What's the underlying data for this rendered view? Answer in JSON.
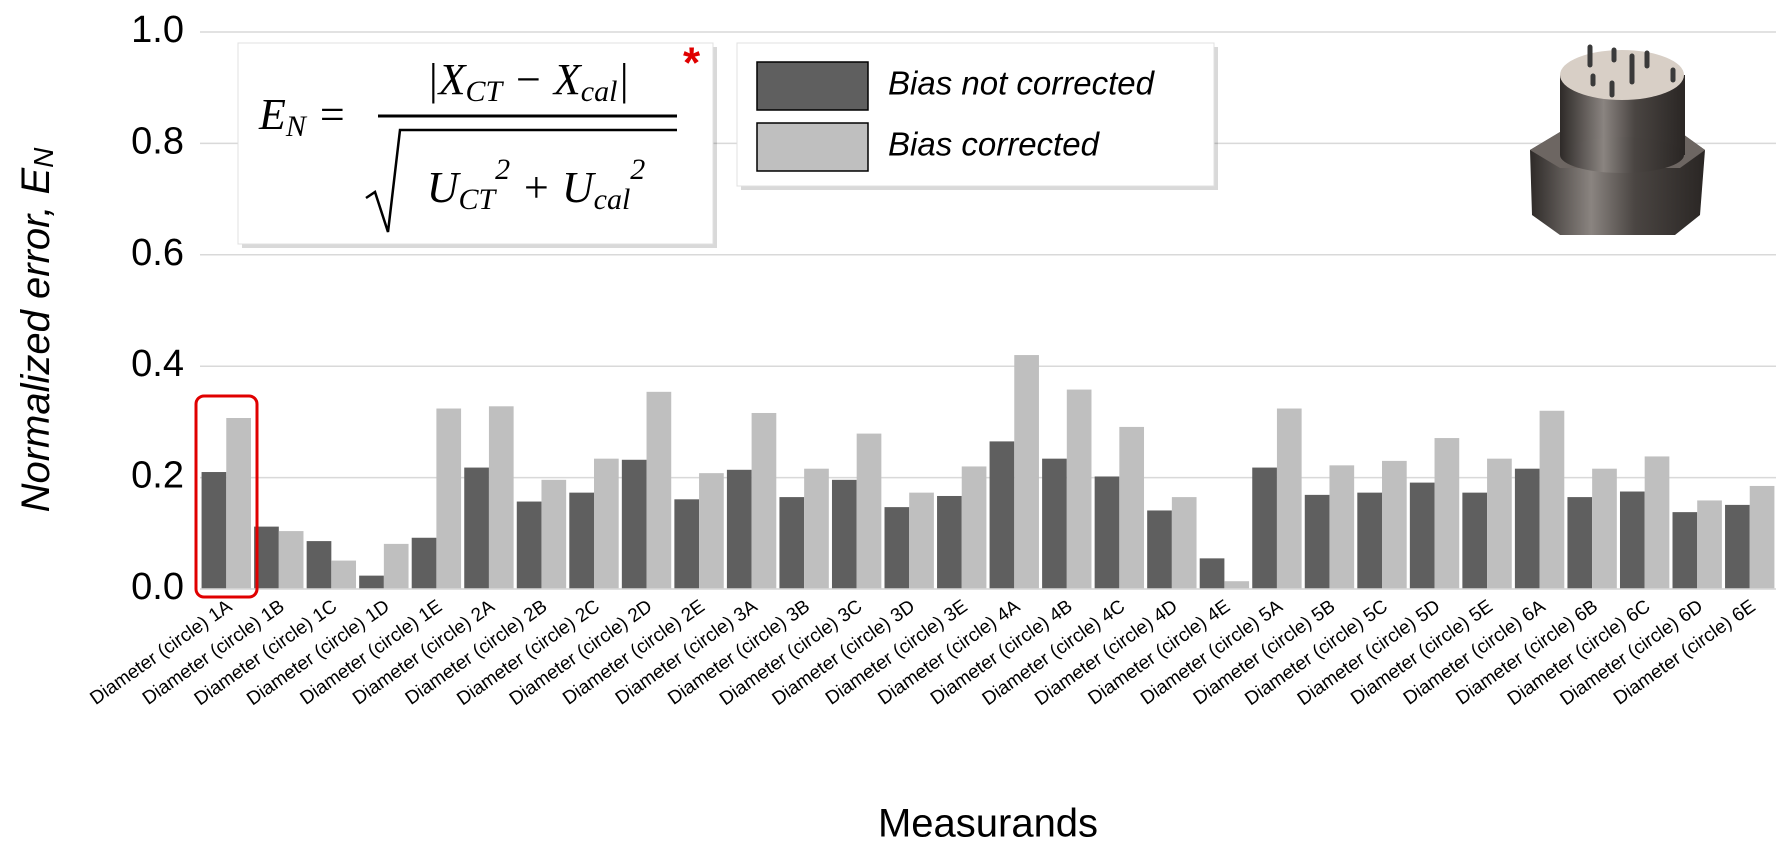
{
  "chart_data": {
    "type": "bar",
    "y_label": "Normalized error, E",
    "y_label_sub": "N",
    "x_label": "Measurands",
    "categories": [
      "Diameter (circle) 1A",
      "Diameter (circle) 1B",
      "Diameter (circle) 1C",
      "Diameter (circle) 1D",
      "Diameter (circle) 1E",
      "Diameter (circle) 2A",
      "Diameter (circle) 2B",
      "Diameter (circle) 2C",
      "Diameter (circle) 2D",
      "Diameter (circle) 2E",
      "Diameter (circle) 3A",
      "Diameter (circle) 3B",
      "Diameter (circle) 3C",
      "Diameter (circle) 3D",
      "Diameter (circle) 3E",
      "Diameter (circle) 4A",
      "Diameter (circle) 4B",
      "Diameter (circle) 4C",
      "Diameter (circle) 4D",
      "Diameter (circle) 4E",
      "Diameter (circle) 5A",
      "Diameter (circle) 5B",
      "Diameter (circle) 5C",
      "Diameter (circle) 5D",
      "Diameter (circle) 5E",
      "Diameter (circle) 6A",
      "Diameter (circle) 6B",
      "Diameter (circle) 6C",
      "Diameter (circle) 6D",
      "Diameter (circle) 6E"
    ],
    "series": [
      {
        "name": "Bias not corrected",
        "color": "#5f5f5f",
        "values": [
          0.21,
          0.112,
          0.086,
          0.024,
          0.092,
          0.218,
          0.157,
          0.173,
          0.232,
          0.161,
          0.214,
          0.165,
          0.196,
          0.147,
          0.167,
          0.265,
          0.234,
          0.202,
          0.141,
          0.055,
          0.218,
          0.169,
          0.173,
          0.191,
          0.173,
          0.216,
          0.165,
          0.175,
          0.138,
          0.151
        ]
      },
      {
        "name": "Bias corrected",
        "color": "#bfbfbf",
        "values": [
          0.307,
          0.104,
          0.051,
          0.081,
          0.324,
          0.328,
          0.196,
          0.234,
          0.354,
          0.208,
          0.316,
          0.216,
          0.279,
          0.173,
          0.22,
          0.42,
          0.358,
          0.291,
          0.165,
          0.014,
          0.324,
          0.222,
          0.23,
          0.271,
          0.234,
          0.32,
          0.216,
          0.238,
          0.159,
          0.185
        ]
      }
    ],
    "ylim": [
      0,
      1.0
    ],
    "yticks": [
      {
        "value": 0,
        "label": "0.0"
      },
      0.2,
      0.4,
      0.6,
      0.8,
      {
        "value": 1.0,
        "label": "1.0"
      }
    ],
    "grid": true,
    "formula": {
      "lhs": "E",
      "lhs_sub": "N",
      "equals": "=",
      "num_open": "|X",
      "num_sub1": "CT",
      "num_minus": " − X",
      "num_sub2": "cal",
      "num_close": "|",
      "den_u1": "U",
      "den_sub1": "CT",
      "den_sup1": "2",
      "den_plus": " + U",
      "den_sub2": "cal",
      "den_sup2": "2",
      "star": "*"
    }
  }
}
